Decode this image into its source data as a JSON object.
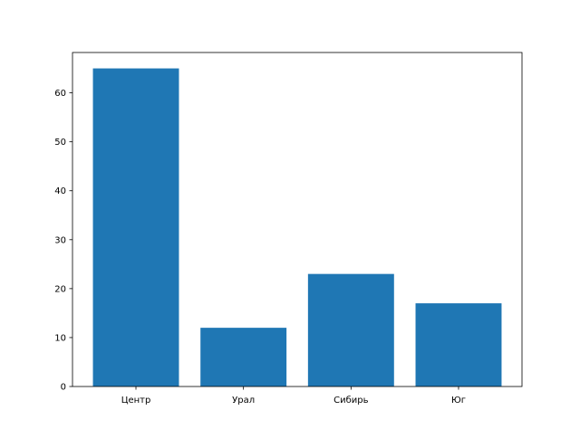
{
  "chart_data": {
    "type": "bar",
    "categories": [
      "Центр",
      "Урал",
      "Сибирь",
      "Юг"
    ],
    "values": [
      65,
      12,
      23,
      17
    ],
    "title": "",
    "xlabel": "",
    "ylabel": "",
    "ylim": [
      0,
      68.25
    ],
    "yticks": [
      0,
      10,
      20,
      30,
      40,
      50,
      60
    ],
    "grid": false,
    "bar_color": "#1f77b4"
  }
}
